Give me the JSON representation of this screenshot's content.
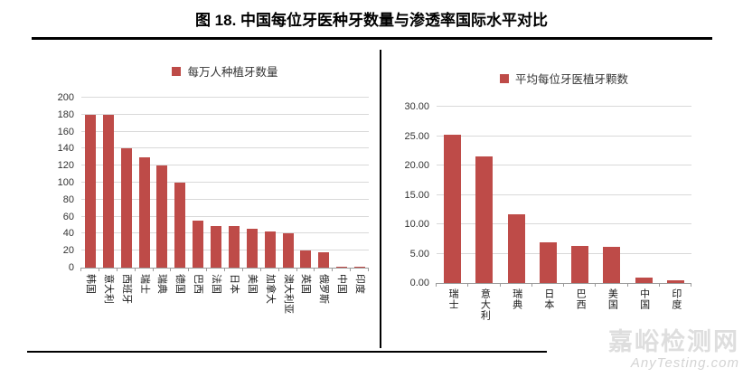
{
  "title": "图 18. 中国每位牙医种牙数量与渗透率国际水平对比",
  "colors": {
    "bar": "#BE4B48",
    "grid": "#D9D9D9",
    "rule": "#000000",
    "watermark": "#DEDEDE"
  },
  "watermark": {
    "cn": "嘉峪检测网",
    "en": "AnyTesting.com"
  },
  "chart_data": [
    {
      "type": "bar",
      "legend": "每万人种植牙数量",
      "categories": [
        "韩国",
        "意大利",
        "西班牙",
        "瑞士",
        "瑞典",
        "德国",
        "巴西",
        "法国",
        "日本",
        "美国",
        "加拿大",
        "澳大利亚",
        "英国",
        "俄罗斯",
        "中国",
        "印度"
      ],
      "values": [
        180,
        180,
        140,
        130,
        120,
        100,
        55,
        49,
        49,
        46,
        43,
        40,
        20,
        18,
        1.5,
        1.5
      ],
      "ylim": [
        0,
        200
      ],
      "ytick_step": 20,
      "ytick_format": "int",
      "grid": true,
      "legend_position": "top"
    },
    {
      "type": "bar",
      "legend": "平均每位牙医植牙颗数",
      "categories": [
        "瑞士",
        "意大利",
        "瑞典",
        "日本",
        "巴西",
        "美国",
        "中国",
        "印度"
      ],
      "values": [
        25.3,
        21.5,
        11.7,
        7.0,
        6.3,
        6.1,
        1.0,
        0.5
      ],
      "ylim": [
        0,
        30
      ],
      "ytick_step": 5,
      "ytick_format": "2dp",
      "grid": true,
      "legend_position": "top"
    }
  ]
}
